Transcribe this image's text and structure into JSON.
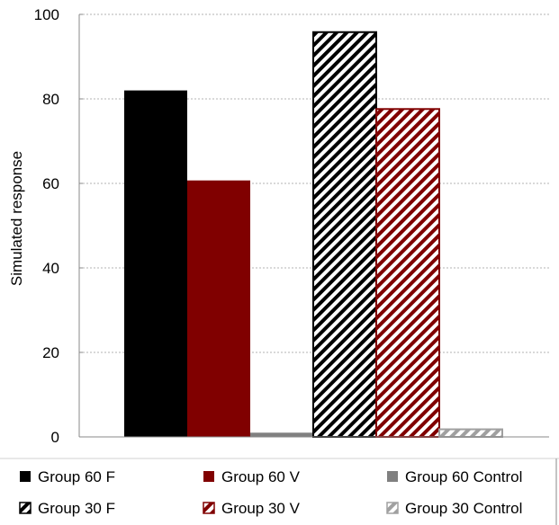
{
  "chart_data": {
    "type": "bar",
    "ylabel": "Simulated response",
    "ylim": [
      0,
      100
    ],
    "yticks": [
      0,
      20,
      40,
      60,
      80,
      100
    ],
    "grid": true,
    "legend_position": "bottom",
    "series": [
      {
        "name": "Group 60 F",
        "value": 82,
        "group": 0,
        "fill": "#000000",
        "pattern": "solid",
        "color": "#000000"
      },
      {
        "name": "Group 60 V",
        "value": 60.7,
        "group": 0,
        "fill": "#800000",
        "pattern": "solid",
        "color": "#800000"
      },
      {
        "name": "Group 60 Control",
        "value": 1,
        "group": 0,
        "fill": "#808080",
        "pattern": "solid",
        "color": "#808080"
      },
      {
        "name": "Group 30 F",
        "value": 95.8,
        "group": 1,
        "fill": "#000000",
        "pattern": "hatch",
        "color": "#000000"
      },
      {
        "name": "Group 30 V",
        "value": 77.6,
        "group": 1,
        "fill": "#800000",
        "pattern": "hatch",
        "color": "#800000"
      },
      {
        "name": "Group 30 Control",
        "value": 1.8,
        "group": 1,
        "fill": "#a0a0a0",
        "pattern": "hatch",
        "color": "#a0a0a0"
      }
    ],
    "legend_marker_colors": [
      "#000000",
      "#800000",
      "#808080",
      "#505050",
      "#800000",
      "#a0a0a0"
    ]
  }
}
